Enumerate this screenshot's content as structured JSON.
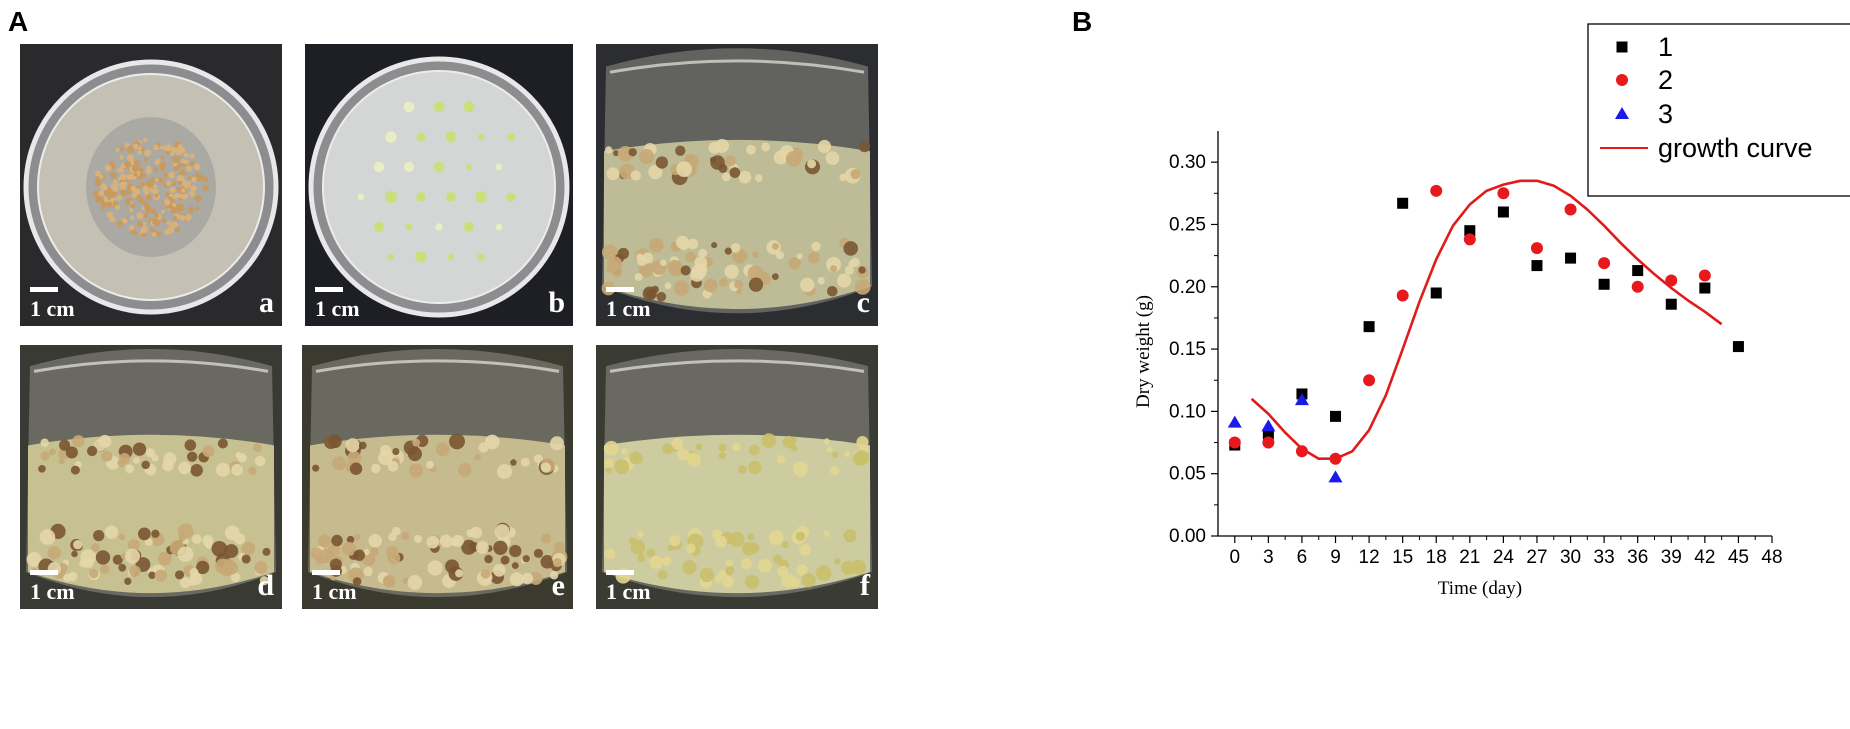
{
  "panels": {
    "a_label": "A",
    "b_label": "B"
  },
  "photos": [
    {
      "letter": "a",
      "scale": "1 cm",
      "bg": "#2a2a2d",
      "vessel": "dish",
      "media": "#c7c4b6"
    },
    {
      "letter": "b",
      "scale": "1 cm",
      "bg": "#1e1f24",
      "vessel": "dish",
      "media": "#d7dad8"
    },
    {
      "letter": "c",
      "scale": "1 cm",
      "bg": "#2b2d30",
      "vessel": "flask",
      "media": "#c9c59c"
    },
    {
      "letter": "d",
      "scale": "1 cm",
      "bg": "#3a3a35",
      "vessel": "flask",
      "media": "#d2cb97"
    },
    {
      "letter": "e",
      "scale": "1 cm",
      "bg": "#3b3a2f",
      "vessel": "flask",
      "media": "#cfc494"
    },
    {
      "letter": "f",
      "scale": "1 cm",
      "bg": "#3a3b33",
      "vessel": "flask",
      "media": "#d8d6a7"
    }
  ],
  "chart_data": {
    "type": "scatter",
    "xlabel": "Time (day)",
    "ylabel": "Dry weight (g)",
    "xlim": [
      -1.5,
      48
    ],
    "ylim": [
      0,
      0.325
    ],
    "xticks": [
      "0",
      "3",
      "6",
      "9",
      "12",
      "15",
      "18",
      "21",
      "24",
      "27",
      "30",
      "33",
      "36",
      "39",
      "42",
      "45",
      "48"
    ],
    "yticks": [
      "0.00",
      "0.05",
      "0.10",
      "0.15",
      "0.20",
      "0.25",
      "0.30"
    ],
    "legend_position": "top-right",
    "series": [
      {
        "name": "1",
        "marker": "square",
        "color": "#000000",
        "x": [
          0,
          3,
          6,
          9,
          12,
          15,
          18,
          21,
          24,
          27,
          30,
          33,
          36,
          39,
          42,
          45
        ],
        "y": [
          0.073,
          0.082,
          0.114,
          0.096,
          0.168,
          0.267,
          0.195,
          0.245,
          0.26,
          0.217,
          0.223,
          0.202,
          0.213,
          0.186,
          0.199,
          0.152
        ]
      },
      {
        "name": "2",
        "marker": "circle",
        "color": "#e8191c",
        "x": [
          0,
          3,
          6,
          9,
          12,
          15,
          18,
          21,
          24,
          27,
          30,
          33,
          36,
          39,
          42
        ],
        "y": [
          0.075,
          0.075,
          0.068,
          0.062,
          0.125,
          0.193,
          0.277,
          0.238,
          0.275,
          0.231,
          0.262,
          0.219,
          0.2,
          0.205,
          0.209
        ]
      },
      {
        "name": "3",
        "marker": "triangle",
        "color": "#1a1aeb",
        "x": [
          0,
          3,
          6,
          9
        ],
        "y": [
          0.091,
          0.088,
          0.109,
          0.047
        ]
      }
    ],
    "curve": {
      "name": "growth curve",
      "color": "#e01b1b",
      "x": [
        1.5,
        3,
        4.5,
        6,
        7.5,
        9,
        10.5,
        12,
        13.5,
        15,
        16.5,
        18,
        19.5,
        21,
        22.5,
        24,
        25.5,
        27,
        28.5,
        30,
        31.5,
        33,
        34.5,
        36,
        37.5,
        39,
        40.5,
        42,
        43.5
      ],
      "y": [
        0.11,
        0.098,
        0.083,
        0.07,
        0.062,
        0.062,
        0.068,
        0.085,
        0.113,
        0.15,
        0.188,
        0.222,
        0.249,
        0.266,
        0.277,
        0.282,
        0.285,
        0.285,
        0.281,
        0.273,
        0.262,
        0.249,
        0.235,
        0.222,
        0.21,
        0.199,
        0.189,
        0.18,
        0.17
      ]
    }
  }
}
